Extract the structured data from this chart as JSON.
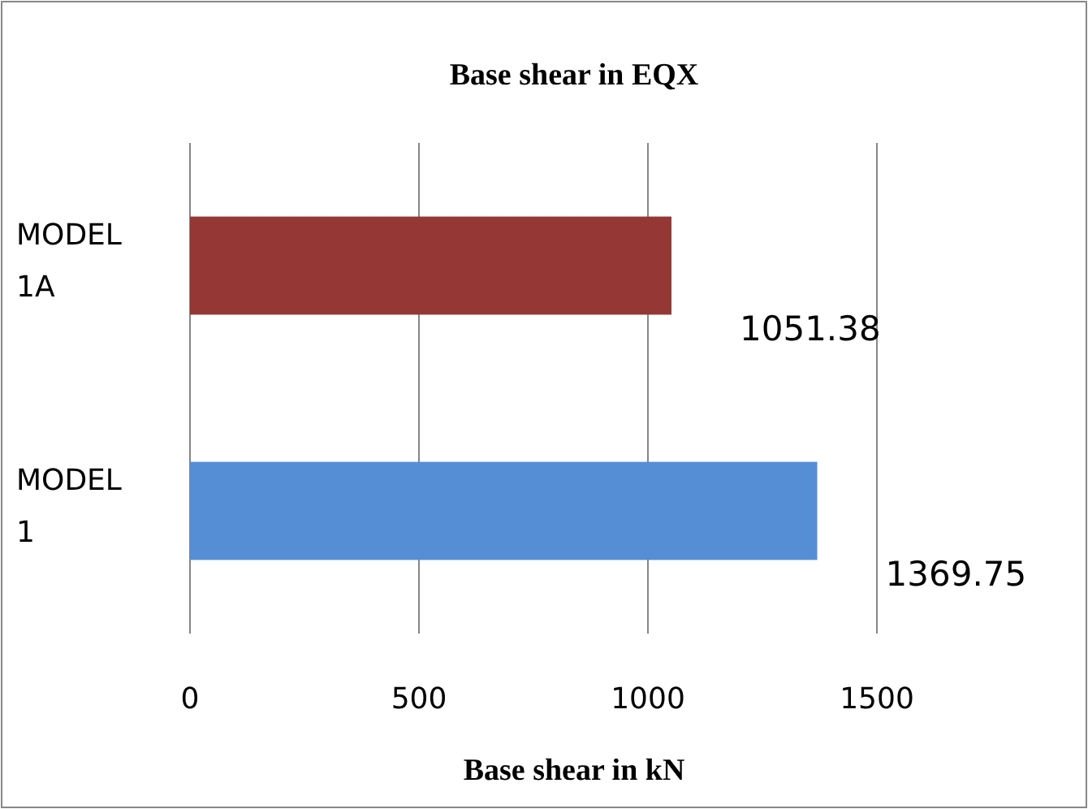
{
  "chart_data": {
    "type": "bar",
    "orientation": "horizontal",
    "title": "Base shear in EQX",
    "xlabel": "Base shear in kN",
    "categories": [
      "MODEL 1A",
      "MODEL 1"
    ],
    "values": [
      1051.38,
      1369.75
    ],
    "colors": [
      "#953735",
      "#558ed5"
    ],
    "xlim": [
      0,
      1500
    ],
    "xticks": [
      0,
      500,
      1000,
      1500
    ],
    "grid": "x",
    "data_labels": true
  }
}
